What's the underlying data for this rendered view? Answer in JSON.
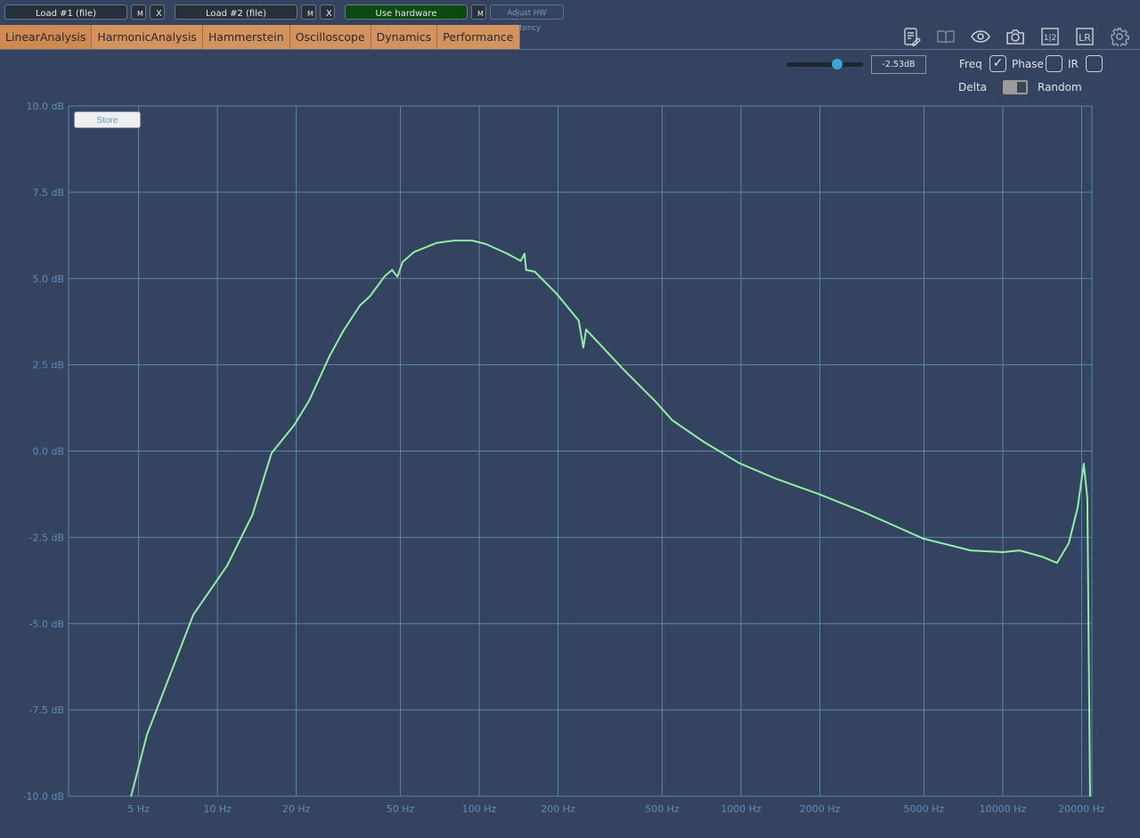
{
  "toolbar": {
    "load1": "Load #1 (file)",
    "load2": "Load #2 (file)",
    "m": "M",
    "x": "X",
    "use_hardware": "Use hardware",
    "adjust_latency": "Adjust HW latency"
  },
  "tabs": [
    {
      "label": "LinearAnalysis",
      "active": true
    },
    {
      "label": "HarmonicAnalysis"
    },
    {
      "label": "Hammerstein"
    },
    {
      "label": "Oscilloscope"
    },
    {
      "label": "Dynamics"
    },
    {
      "label": "Performance"
    }
  ],
  "icons": [
    "notes-icon",
    "book-icon",
    "eye-icon",
    "camera-icon",
    "one-two-icon",
    "lr-icon",
    "gear-icon"
  ],
  "icon_text": {
    "one_two": "1|2",
    "lr": "LR"
  },
  "controls": {
    "gain_value": "-2.53dB",
    "gain_slider_fraction": 0.66,
    "freq_label": "Freq",
    "freq_checked": true,
    "phase_label": "Phase",
    "phase_checked": false,
    "ir_label": "IR",
    "ir_checked": false,
    "delta_label": "Delta",
    "random_label": "Random",
    "store_label": "Store"
  },
  "colors": {
    "curve": "#8ef0a0",
    "grid": "#5a86aa",
    "tick_label": "#5f8db5",
    "tab": "#d3935e",
    "hardware": "#0b4a10"
  },
  "chart_data": {
    "type": "line",
    "x_scale": "log",
    "xlim": [
      2.7,
      21900
    ],
    "ylim": [
      -10,
      10
    ],
    "grid": true,
    "x_ticks": [
      5,
      10,
      20,
      50,
      100,
      200,
      500,
      1000,
      2000,
      5000,
      10000,
      20000
    ],
    "x_tick_labels": [
      "5 Hz",
      "10 Hz",
      "20 Hz",
      "50 Hz",
      "100 Hz",
      "200 Hz",
      "500 Hz",
      "1000 Hz",
      "2000 Hz",
      "5000 Hz",
      "10000 Hz",
      "20000 Hz"
    ],
    "y_ticks": [
      10,
      7.5,
      5,
      2.5,
      0,
      -2.5,
      -5,
      -7.5,
      -10
    ],
    "y_tick_labels": [
      "10.0 dB",
      "7.5 dB",
      "5.0 dB",
      "2.5 dB",
      "0.0 dB",
      "-2.5 dB",
      "-5.0 dB",
      "-7.5 dB",
      "-10.0 dB"
    ],
    "series": [
      {
        "x": [
          4.68,
          5.38,
          8.09,
          10.9,
          13.6,
          16.1,
          19.6,
          22.4,
          26.8,
          30.2,
          35.0,
          38.2,
          43.6,
          46.5,
          48.7,
          51.0,
          56.4,
          68.7,
          80.3,
          94,
          106,
          128,
          144,
          149,
          151,
          163,
          198,
          240,
          250,
          256,
          356,
          468,
          547,
          719,
          985,
          1346,
          1990,
          2943,
          4977,
          7545,
          10000,
          11600,
          14125,
          16110,
          17860,
          19320,
          20400,
          21040,
          21540
        ],
        "y": [
          -10,
          -8.22,
          -4.74,
          -3.32,
          -1.85,
          -0.06,
          0.74,
          1.46,
          2.75,
          3.47,
          4.22,
          4.48,
          5.07,
          5.25,
          5.05,
          5.48,
          5.77,
          6.03,
          6.1,
          6.1,
          6.0,
          5.72,
          5.51,
          5.72,
          5.25,
          5.2,
          4.55,
          3.78,
          3.0,
          3.52,
          2.36,
          1.46,
          0.89,
          0.27,
          -0.35,
          -0.79,
          -1.25,
          -1.77,
          -2.54,
          -2.88,
          -2.93,
          -2.88,
          -3.06,
          -3.24,
          -2.67,
          -1.64,
          -0.37,
          -1.38,
          -10
        ]
      }
    ]
  }
}
